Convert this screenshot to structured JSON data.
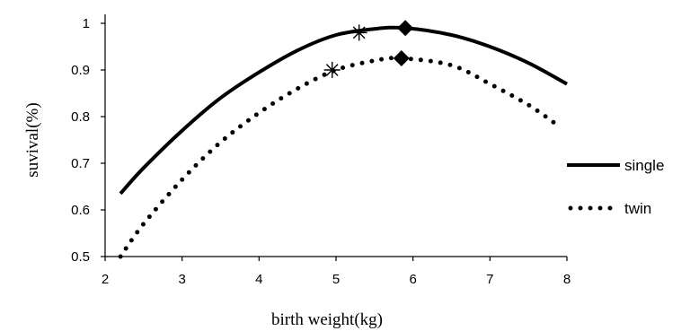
{
  "chart_data": {
    "type": "line",
    "title": "",
    "xlabel": "birth weight(kg)",
    "ylabel": "suvival(%)",
    "xlim": [
      2,
      8
    ],
    "ylim": [
      0.5,
      1.0
    ],
    "x_ticks": [
      "2",
      "3",
      "4",
      "5",
      "6",
      "7",
      "8"
    ],
    "y_ticks": [
      "0.5",
      "0.6",
      "0.7",
      "0.8",
      "0.9",
      "1"
    ],
    "grid": false,
    "legend_position": "right",
    "series": [
      {
        "name": "single",
        "style": "solid",
        "x": [
          2.2,
          2.5,
          3.0,
          3.5,
          4.0,
          4.5,
          5.0,
          5.5,
          5.9,
          6.5,
          7.0,
          7.5,
          8.0
        ],
        "y": [
          0.635,
          0.69,
          0.77,
          0.84,
          0.895,
          0.942,
          0.975,
          0.988,
          0.99,
          0.975,
          0.95,
          0.915,
          0.87
        ]
      },
      {
        "name": "twin",
        "style": "dotted",
        "x": [
          2.2,
          2.5,
          3.0,
          3.5,
          4.0,
          4.5,
          5.0,
          5.5,
          5.85,
          6.5,
          7.0,
          7.5,
          7.85
        ],
        "y": [
          0.5,
          0.57,
          0.665,
          0.745,
          0.808,
          0.86,
          0.9,
          0.92,
          0.925,
          0.91,
          0.87,
          0.825,
          0.785
        ]
      }
    ],
    "markers": [
      {
        "series": "single",
        "shape": "asterisk",
        "x": 5.3,
        "y": 0.98
      },
      {
        "series": "single",
        "shape": "diamond",
        "x": 5.9,
        "y": 0.99
      },
      {
        "series": "twin",
        "shape": "asterisk",
        "x": 4.95,
        "y": 0.9
      },
      {
        "series": "twin",
        "shape": "diamond",
        "x": 5.85,
        "y": 0.925
      }
    ]
  }
}
